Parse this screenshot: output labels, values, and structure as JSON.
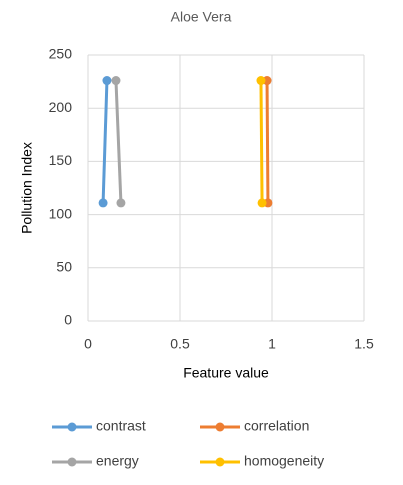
{
  "chart_data": {
    "type": "scatter",
    "title": "Aloe Vera",
    "x_label": "Feature value",
    "y_label": "Pollution Index",
    "xlim": [
      0,
      1.5
    ],
    "xticks": [
      0,
      0.5,
      1,
      1.5
    ],
    "ylim": [
      0,
      250
    ],
    "yticks": [
      0,
      50,
      100,
      150,
      200,
      250
    ],
    "grid": true,
    "legend": "bottom",
    "series": [
      {
        "name": "contrast",
        "color": "#5b9bd5",
        "x": [
          0.103,
          0.082
        ],
        "values": [
          226,
          111
        ]
      },
      {
        "name": "correlation",
        "color": "#ed7d31",
        "x": [
          0.973,
          0.978
        ],
        "values": [
          226,
          111
        ]
      },
      {
        "name": "energy",
        "color": "#a5a5a5",
        "x": [
          0.152,
          0.179
        ],
        "values": [
          226,
          111
        ]
      },
      {
        "name": "homogeneity",
        "color": "#ffc000",
        "x": [
          0.94,
          0.946
        ],
        "values": [
          226,
          111
        ]
      }
    ]
  }
}
